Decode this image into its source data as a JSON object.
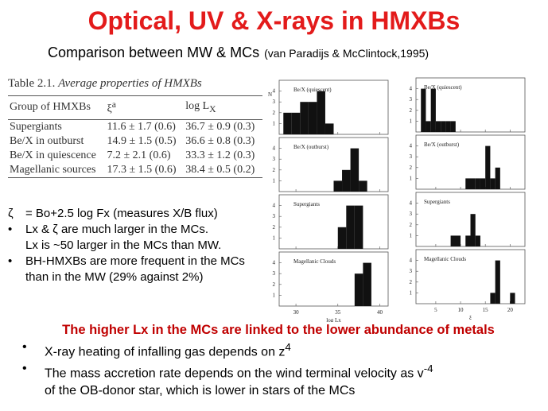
{
  "title": "Optical, UV & X-rays in HMXBs",
  "subtitle": "Comparison between MW & MCs",
  "citation": "(van Paradijs & McClintock,1995)",
  "table": {
    "caption_label": "Table 2.1.",
    "caption": "Average properties of HMXBs",
    "headers": [
      {
        "text": "Group of HMXBs"
      },
      {
        "text": "ξ",
        "sup": "a"
      },
      {
        "text": "log L",
        "sub": "X"
      }
    ],
    "rows": [
      [
        "Supergiants",
        "11.6 ± 1.7 (0.6)",
        "36.7 ± 0.9 (0.3)"
      ],
      [
        "Be/X in outburst",
        "14.9 ± 1.5 (0.5)",
        "36.6 ± 0.8 (0.3)"
      ],
      [
        "Be/X in quiescence",
        "7.2 ± 2.1 (0.6)",
        "33.3 ± 1.2 (0.3)"
      ],
      [
        "Magellanic sources",
        "17.3 ± 1.5 (0.6)",
        "38.4 ± 0.5 (0.2)"
      ]
    ]
  },
  "bullets": [
    {
      "marker": "ζ",
      "text": "= Bo+2.5 log Fx (measures X/B flux)"
    },
    {
      "marker": "•",
      "text": "Lx & ζ are much larger in the MCs.",
      "cont": "Lx is ~50 larger in the MCs than MW."
    },
    {
      "marker": "•",
      "text": "BH-HMXBs are more frequent in the MCs than in the MW (29% against 2%)"
    }
  ],
  "figures": [
    {
      "xlim": [
        28,
        41
      ],
      "xticks": [
        30,
        35,
        40
      ],
      "xlabel": "log Lx",
      "ylabel": "N",
      "ylim": [
        0,
        5
      ],
      "yticks": [
        1,
        2,
        3,
        4
      ],
      "panels": [
        {
          "label": "Be/X (quiescent)",
          "bins": [
            28.5,
            29.5,
            30.5,
            31.5,
            32.5,
            33.5,
            34.5
          ],
          "counts": [
            2,
            2,
            3,
            3,
            4,
            1
          ]
        },
        {
          "label": "Be/X (outburst)",
          "bins": [
            34.5,
            35.5,
            36.5,
            37.5,
            38.5
          ],
          "counts": [
            1,
            2,
            4,
            1
          ]
        },
        {
          "label": "Supergiants",
          "bins": [
            35,
            36,
            37,
            38
          ],
          "counts": [
            2,
            4,
            4
          ]
        },
        {
          "label": "Magellanic Clouds",
          "bins": [
            37,
            38,
            39
          ],
          "counts": [
            3,
            4
          ]
        }
      ]
    },
    {
      "xlim": [
        1,
        23
      ],
      "xticks": [
        5,
        10,
        15,
        20
      ],
      "xlabel": "ξ",
      "ylim": [
        0,
        5
      ],
      "yticks": [
        1,
        2,
        3,
        4
      ],
      "panels": [
        {
          "label": "Be/X (quiescent)",
          "bins": [
            2,
            3,
            4,
            5,
            6,
            7,
            8,
            9
          ],
          "counts": [
            4,
            1,
            4,
            1,
            1,
            1,
            1
          ]
        },
        {
          "label": "Be/X (outburst)",
          "bins": [
            11,
            12,
            13,
            14,
            15,
            16,
            17,
            18
          ],
          "counts": [
            1,
            1,
            1,
            1,
            4,
            1,
            2
          ]
        },
        {
          "label": "Supergiants",
          "bins": [
            8,
            10,
            11,
            12,
            13,
            14
          ],
          "counts": [
            1,
            0,
            1,
            3,
            1
          ]
        },
        {
          "label": "Magellanic Clouds",
          "bins": [
            16,
            17,
            18,
            20,
            21
          ],
          "counts": [
            1,
            4,
            0,
            1
          ]
        }
      ]
    }
  ],
  "bottom": {
    "heading": "The higher Lx in the MCs are linked to the lower abundance of metals",
    "bullets": [
      {
        "marker": "•",
        "text": "X-ray heating of infalling gas depends on z",
        "sup": "4"
      },
      {
        "marker": "•",
        "text": "The mass accretion rate depends on the wind terminal velocity as v",
        "sup": "-4",
        "cont": "of the OB-donor star, which is lower in stars of the MCs"
      }
    ]
  }
}
